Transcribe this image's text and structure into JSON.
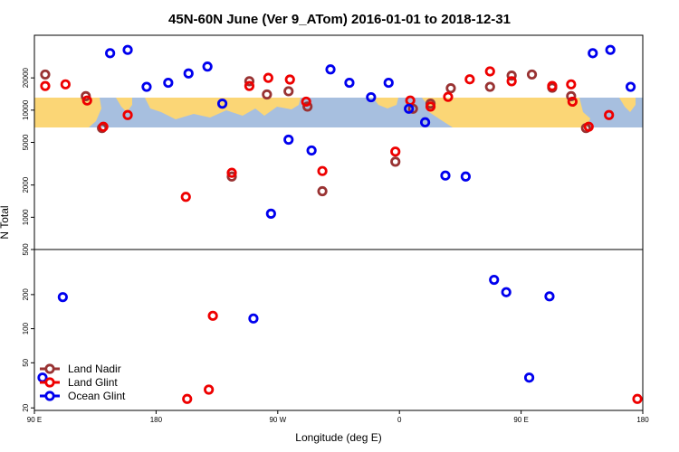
{
  "chart_data": {
    "type": "scatter",
    "title": "45N-60N June (Ver 9_ATom)   2016-01-01 to 2018-12-31",
    "xlabel": "Longitude (deg E)",
    "ylabel": "N Total",
    "x_ticks": [
      {
        "value": 0,
        "label": "90 E"
      },
      {
        "value": 90,
        "label": "180"
      },
      {
        "value": 180,
        "label": "90 W"
      },
      {
        "value": 270,
        "label": "0"
      },
      {
        "value": 360,
        "label": "90 E"
      },
      {
        "value": 450,
        "label": "180"
      }
    ],
    "xlim": [
      0,
      450
    ],
    "y_scale": "log, split at 500",
    "upper_panel_ylim": [
      500,
      50000
    ],
    "lower_panel_ylim": [
      19,
      500
    ],
    "upper_y_ticks": [
      "500",
      "1000",
      "2000",
      "5000",
      "10000",
      "20000"
    ],
    "lower_y_ticks": [
      "20",
      "50",
      "100",
      "200",
      "500"
    ],
    "map_band": "world map strip (longitudes 90E to 180, repeated) across the upper panel",
    "legend_position": "bottom-left",
    "series": [
      {
        "name": "Land Nadir",
        "color": "#993333",
        "points": [
          {
            "x": 8,
            "y": 21500
          },
          {
            "x": 38,
            "y": 13500
          },
          {
            "x": 50,
            "y": 6800
          },
          {
            "x": 146,
            "y": 2400
          },
          {
            "x": 159,
            "y": 18600
          },
          {
            "x": 172,
            "y": 14000
          },
          {
            "x": 188,
            "y": 15000
          },
          {
            "x": 202,
            "y": 10800
          },
          {
            "x": 213,
            "y": 1750
          },
          {
            "x": 267,
            "y": 3300
          },
          {
            "x": 280,
            "y": 10300
          },
          {
            "x": 293,
            "y": 11500
          },
          {
            "x": 308,
            "y": 16000
          },
          {
            "x": 337,
            "y": 16500
          },
          {
            "x": 353,
            "y": 21000
          },
          {
            "x": 368,
            "y": 21500
          },
          {
            "x": 383,
            "y": 16200
          },
          {
            "x": 397,
            "y": 13500
          },
          {
            "x": 408,
            "y": 6800
          }
        ]
      },
      {
        "name": "Land Glint",
        "color": "#ee0000",
        "points": [
          {
            "x": 8,
            "y": 16800
          },
          {
            "x": 23,
            "y": 17400
          },
          {
            "x": 39,
            "y": 12300
          },
          {
            "x": 51,
            "y": 7000
          },
          {
            "x": 69,
            "y": 9000
          },
          {
            "x": 113,
            "y": 24
          },
          {
            "x": 112,
            "y": 1550
          },
          {
            "x": 129,
            "y": 29
          },
          {
            "x": 132,
            "y": 130
          },
          {
            "x": 146,
            "y": 2600
          },
          {
            "x": 159,
            "y": 16800
          },
          {
            "x": 173,
            "y": 20000
          },
          {
            "x": 189,
            "y": 19300
          },
          {
            "x": 201,
            "y": 12000
          },
          {
            "x": 213,
            "y": 2700
          },
          {
            "x": 267,
            "y": 4100
          },
          {
            "x": 278,
            "y": 12300
          },
          {
            "x": 293,
            "y": 10800
          },
          {
            "x": 306,
            "y": 13300
          },
          {
            "x": 322,
            "y": 19400
          },
          {
            "x": 337,
            "y": 23000
          },
          {
            "x": 353,
            "y": 18600
          },
          {
            "x": 383,
            "y": 16800
          },
          {
            "x": 397,
            "y": 17400
          },
          {
            "x": 398,
            "y": 12000
          },
          {
            "x": 410,
            "y": 7000
          },
          {
            "x": 425,
            "y": 9000
          },
          {
            "x": 446,
            "y": 24
          }
        ]
      },
      {
        "name": "Ocean Glint",
        "color": "#0000ee",
        "points": [
          {
            "x": 6,
            "y": 37
          },
          {
            "x": 21,
            "y": 190
          },
          {
            "x": 56,
            "y": 34000
          },
          {
            "x": 69,
            "y": 36500
          },
          {
            "x": 83,
            "y": 16500
          },
          {
            "x": 99,
            "y": 18000
          },
          {
            "x": 114,
            "y": 22000
          },
          {
            "x": 128,
            "y": 25500
          },
          {
            "x": 139,
            "y": 11500
          },
          {
            "x": 162,
            "y": 123
          },
          {
            "x": 175,
            "y": 1080
          },
          {
            "x": 188,
            "y": 5300
          },
          {
            "x": 205,
            "y": 4200
          },
          {
            "x": 219,
            "y": 24000
          },
          {
            "x": 233,
            "y": 18000
          },
          {
            "x": 249,
            "y": 13200
          },
          {
            "x": 262,
            "y": 18000
          },
          {
            "x": 277,
            "y": 10300
          },
          {
            "x": 289,
            "y": 7700
          },
          {
            "x": 304,
            "y": 2450
          },
          {
            "x": 319,
            "y": 2400
          },
          {
            "x": 340,
            "y": 270
          },
          {
            "x": 349,
            "y": 210
          },
          {
            "x": 366,
            "y": 37
          },
          {
            "x": 381,
            "y": 193
          },
          {
            "x": 413,
            "y": 34000
          },
          {
            "x": 426,
            "y": 36500
          },
          {
            "x": 441,
            "y": 16500
          }
        ]
      }
    ]
  }
}
